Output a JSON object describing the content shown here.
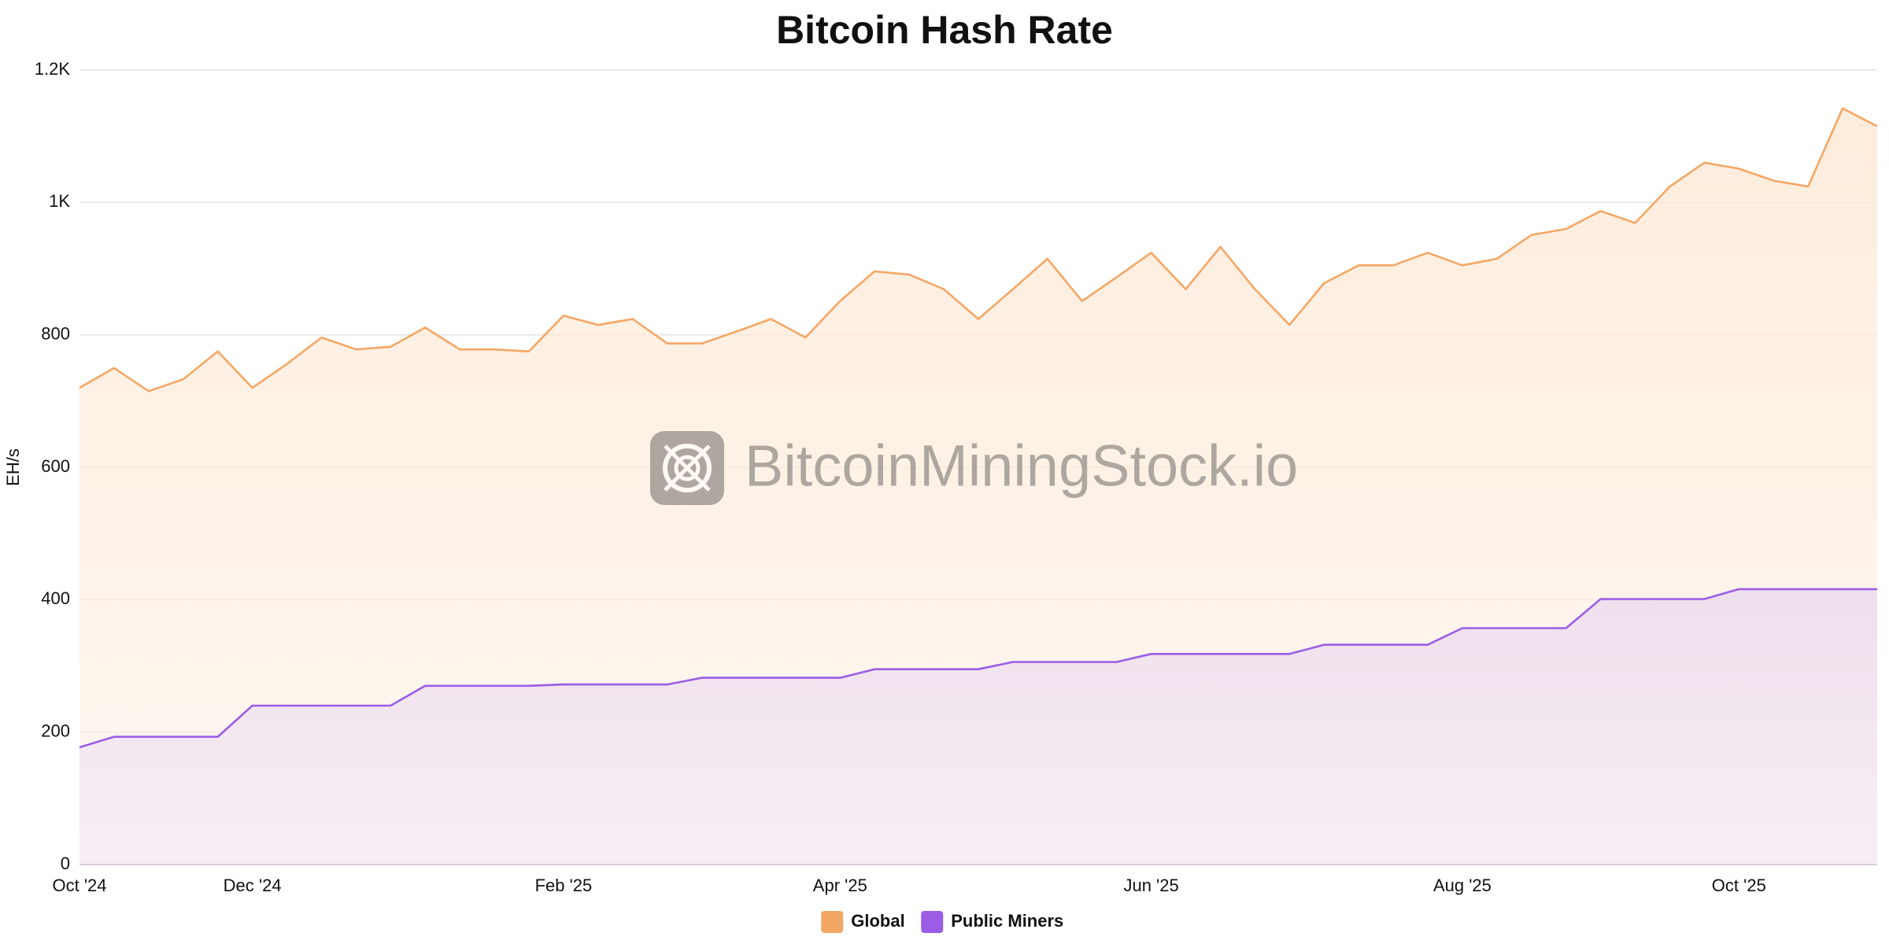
{
  "chart_data": {
    "type": "area",
    "title": "Bitcoin Hash Rate",
    "y_label": "EH/s",
    "watermark": "BitcoinMiningStock.io",
    "categories": [
      "Oct '24",
      null,
      null,
      null,
      null,
      "Dec '24",
      null,
      null,
      null,
      null,
      null,
      null,
      null,
      null,
      "Feb '25",
      null,
      null,
      null,
      null,
      null,
      null,
      null,
      "Apr '25",
      null,
      null,
      null,
      null,
      null,
      null,
      null,
      null,
      "Jun '25",
      null,
      null,
      null,
      null,
      null,
      null,
      null,
      null,
      "Aug '25",
      null,
      null,
      null,
      null,
      null,
      null,
      null,
      "Oct '25",
      null,
      null,
      null,
      null
    ],
    "series": [
      {
        "name": "Global",
        "color": "#f4a765",
        "values": [
          720,
          750,
          715,
          733,
          775,
          720,
          756,
          796,
          778,
          782,
          811,
          778,
          778,
          775,
          829,
          815,
          824,
          787,
          787,
          805,
          824,
          796,
          851,
          896,
          891,
          869,
          824,
          869,
          915,
          851,
          887,
          924,
          869,
          933,
          869,
          815,
          878,
          905,
          905,
          924,
          905,
          915,
          951,
          960,
          987,
          969,
          1024,
          1060,
          1051,
          1033,
          1024,
          1142,
          1115
        ]
      },
      {
        "name": "Public Miners",
        "color": "#9b5de5",
        "values": [
          177,
          193,
          193,
          193,
          193,
          240,
          240,
          240,
          240,
          240,
          270,
          270,
          270,
          270,
          272,
          272,
          272,
          272,
          282,
          282,
          282,
          282,
          282,
          295,
          295,
          295,
          295,
          306,
          306,
          306,
          306,
          318,
          318,
          318,
          318,
          318,
          332,
          332,
          332,
          332,
          357,
          357,
          357,
          357,
          401,
          401,
          401,
          401,
          416,
          416,
          416,
          416,
          416
        ]
      }
    ],
    "ylim": [
      0,
      1200
    ],
    "yticks": [
      0,
      200,
      400,
      600,
      800,
      {
        "value": 1000,
        "label": "1K"
      },
      {
        "value": 1200,
        "label": "1.2K"
      }
    ],
    "grid": true,
    "legend": "bottom"
  }
}
